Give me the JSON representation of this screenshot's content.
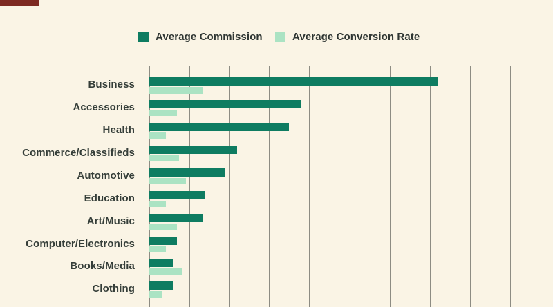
{
  "page": {
    "background": "#faf4e5",
    "corner_marker_color": "#7d2a22"
  },
  "legend": [
    {
      "label": "Average Commission",
      "color": "#0e7c61"
    },
    {
      "label": "Average Conversion Rate",
      "color": "#abe3c3"
    }
  ],
  "chart_data": {
    "type": "bar",
    "orientation": "horizontal",
    "title": "",
    "xlabel": "",
    "ylabel": "",
    "categories": [
      "Business",
      "Accessories",
      "Health",
      "Commerce/Classifieds",
      "Automotive",
      "Education",
      "Art/Music",
      "Computer/Electronics",
      "Books/Media",
      "Clothing"
    ],
    "series": [
      {
        "name": "Average Commission",
        "color": "#0e7c61",
        "values": [
          7.2,
          3.8,
          3.5,
          2.2,
          1.9,
          1.4,
          1.35,
          0.7,
          0.6,
          0.6
        ]
      },
      {
        "name": "Average Conversion Rate",
        "color": "#abe3c3",
        "values": [
          1.35,
          0.7,
          0.43,
          0.76,
          0.93,
          0.43,
          0.7,
          0.43,
          0.83,
          0.33
        ]
      }
    ],
    "xlim": [
      0,
      9
    ],
    "gridline_count": 10,
    "gridline_interval": 1,
    "grid_color": "#8d8c83",
    "tick_labels_visible": false,
    "legend_position": "top",
    "label_text_color": "#353e39"
  }
}
